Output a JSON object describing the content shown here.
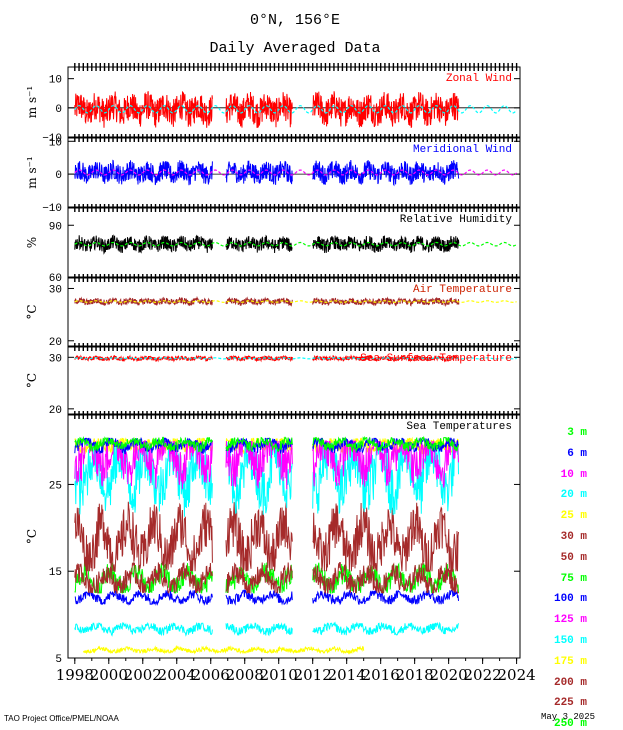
{
  "title": "0°N, 156°E",
  "subtitle": "Daily Averaged Data",
  "footer_left": "TAO Project Office/PMEL/NOAA",
  "footer_right": "May  3 2025",
  "x_ticks": [
    "1998",
    "2000",
    "2002",
    "2004",
    "2006",
    "2008",
    "2010",
    "2012",
    "2014",
    "2016",
    "2018",
    "2020",
    "2022",
    "2024"
  ],
  "panels": [
    {
      "name": "zonal-wind",
      "label": "Zonal Wind",
      "label_color": "#ff0000",
      "unit": "m s⁻¹",
      "yticks": [
        "10",
        "0",
        "−10"
      ],
      "ylim": [
        -10,
        14
      ],
      "data_color": "#ff0000",
      "clim_color": "#00ffff",
      "segments": [
        [
          1998.0,
          2006.1
        ],
        [
          2006.9,
          2010.8
        ],
        [
          2012.0,
          2020.6
        ]
      ],
      "mean": -0.5,
      "amplitude": 5
    },
    {
      "name": "meridional-wind",
      "label": "Meridional Wind",
      "label_color": "#0000ff",
      "unit": "m s⁻¹",
      "yticks": [
        "10",
        "0",
        "−10"
      ],
      "ylim": [
        -10,
        11
      ],
      "data_color": "#0000ff",
      "clim_color": "#ff00ff",
      "segments": [
        [
          1998.0,
          2006.1
        ],
        [
          2006.9,
          2010.8
        ],
        [
          2012.0,
          2020.6
        ]
      ],
      "mean": 0.5,
      "amplitude": 3
    },
    {
      "name": "relative-humidity",
      "label": "Relative Humidity",
      "label_color": "#000000",
      "unit": "%",
      "yticks": [
        "90",
        "60"
      ],
      "ylim": [
        60,
        100
      ],
      "data_color": "#000000",
      "clim_color": "#00ff00",
      "segments": [
        [
          1998.0,
          2006.1
        ],
        [
          2006.9,
          2010.8
        ],
        [
          2012.0,
          2020.6
        ]
      ],
      "mean": 79,
      "amplitude": 4
    },
    {
      "name": "air-temperature",
      "label": "Air Temperature",
      "label_color": "#cc2200",
      "unit": "°C",
      "yticks": [
        "30",
        "20"
      ],
      "ylim": [
        19,
        32
      ],
      "data_color": "#a52a2a",
      "clim_color": "#ffff00",
      "segments": [
        [
          1998.0,
          2006.1
        ],
        [
          2006.9,
          2010.8
        ],
        [
          2012.0,
          2020.6
        ]
      ],
      "mean": 27.5,
      "amplitude": 0.6
    },
    {
      "name": "sea-surface-temperature",
      "label": "Sea Surface Temperature",
      "label_color": "#ff0000",
      "unit": "°C",
      "yticks": [
        "30",
        "20"
      ],
      "ylim": [
        19,
        32
      ],
      "data_color": "#ff0000",
      "clim_color": "#00ffff",
      "segments": [
        [
          1998.0,
          2006.1
        ],
        [
          2006.9,
          2010.8
        ],
        [
          2012.0,
          2020.6
        ]
      ],
      "mean": 29.8,
      "amplitude": 0.4
    }
  ],
  "chart_data": {
    "type": "line",
    "title": "Sea Temperatures",
    "ylabel": "°C",
    "yticks": [
      "25",
      "15",
      "5"
    ],
    "ylim": [
      5,
      33
    ],
    "xlim": [
      1997.6,
      2024.2
    ],
    "series": [
      {
        "name": "3 m",
        "color": "#00ff00",
        "mean": 29.7,
        "range": [
          28.8,
          30.4
        ]
      },
      {
        "name": "6 m",
        "color": "#0000ff",
        "mean": 29.6,
        "range": [
          28.5,
          30.3
        ]
      },
      {
        "name": "10 m",
        "color": "#ff00ff",
        "mean": 28.5,
        "range": [
          23.0,
          30.0
        ]
      },
      {
        "name": "20 m",
        "color": "#00ffff",
        "mean": 26.5,
        "range": [
          21.0,
          29.8
        ]
      },
      {
        "name": "25 m",
        "color": "#ffff00",
        "mean": 29.5,
        "range": [
          28.5,
          30.3
        ]
      },
      {
        "name": "30 m",
        "color": "#a52a2a",
        "mean": 18.5,
        "range": [
          15.0,
          23.0
        ]
      },
      {
        "name": "50 m",
        "color": "#a52a2a",
        "mean": 14.0,
        "range": [
          12.5,
          16.0
        ]
      },
      {
        "name": "75 m",
        "color": "#00ff00",
        "mean": 14.0,
        "range": [
          12.5,
          16.0
        ]
      },
      {
        "name": "100 m",
        "color": "#0000ff",
        "mean": 12.0,
        "range": [
          11.2,
          12.8
        ]
      },
      {
        "name": "125 m",
        "color": "#ff00ff",
        "mean": 11.5,
        "range": [
          11.0,
          12.0
        ]
      },
      {
        "name": "150 m",
        "color": "#00ffff",
        "mean": 8.4,
        "range": [
          7.6,
          9.0
        ]
      },
      {
        "name": "175 m",
        "color": "#ffff00",
        "mean": 5.9,
        "range": [
          5.6,
          6.3
        ]
      },
      {
        "name": "200 m",
        "color": "#a52a2a",
        "mean": 5.5,
        "range": [
          5.2,
          5.8
        ]
      },
      {
        "name": "225 m",
        "color": "#a52a2a",
        "mean": 5.3,
        "range": [
          5.0,
          5.6
        ]
      },
      {
        "name": "250 m",
        "color": "#00ff00",
        "mean": 5.2,
        "range": [
          5.0,
          5.4
        ]
      }
    ]
  }
}
